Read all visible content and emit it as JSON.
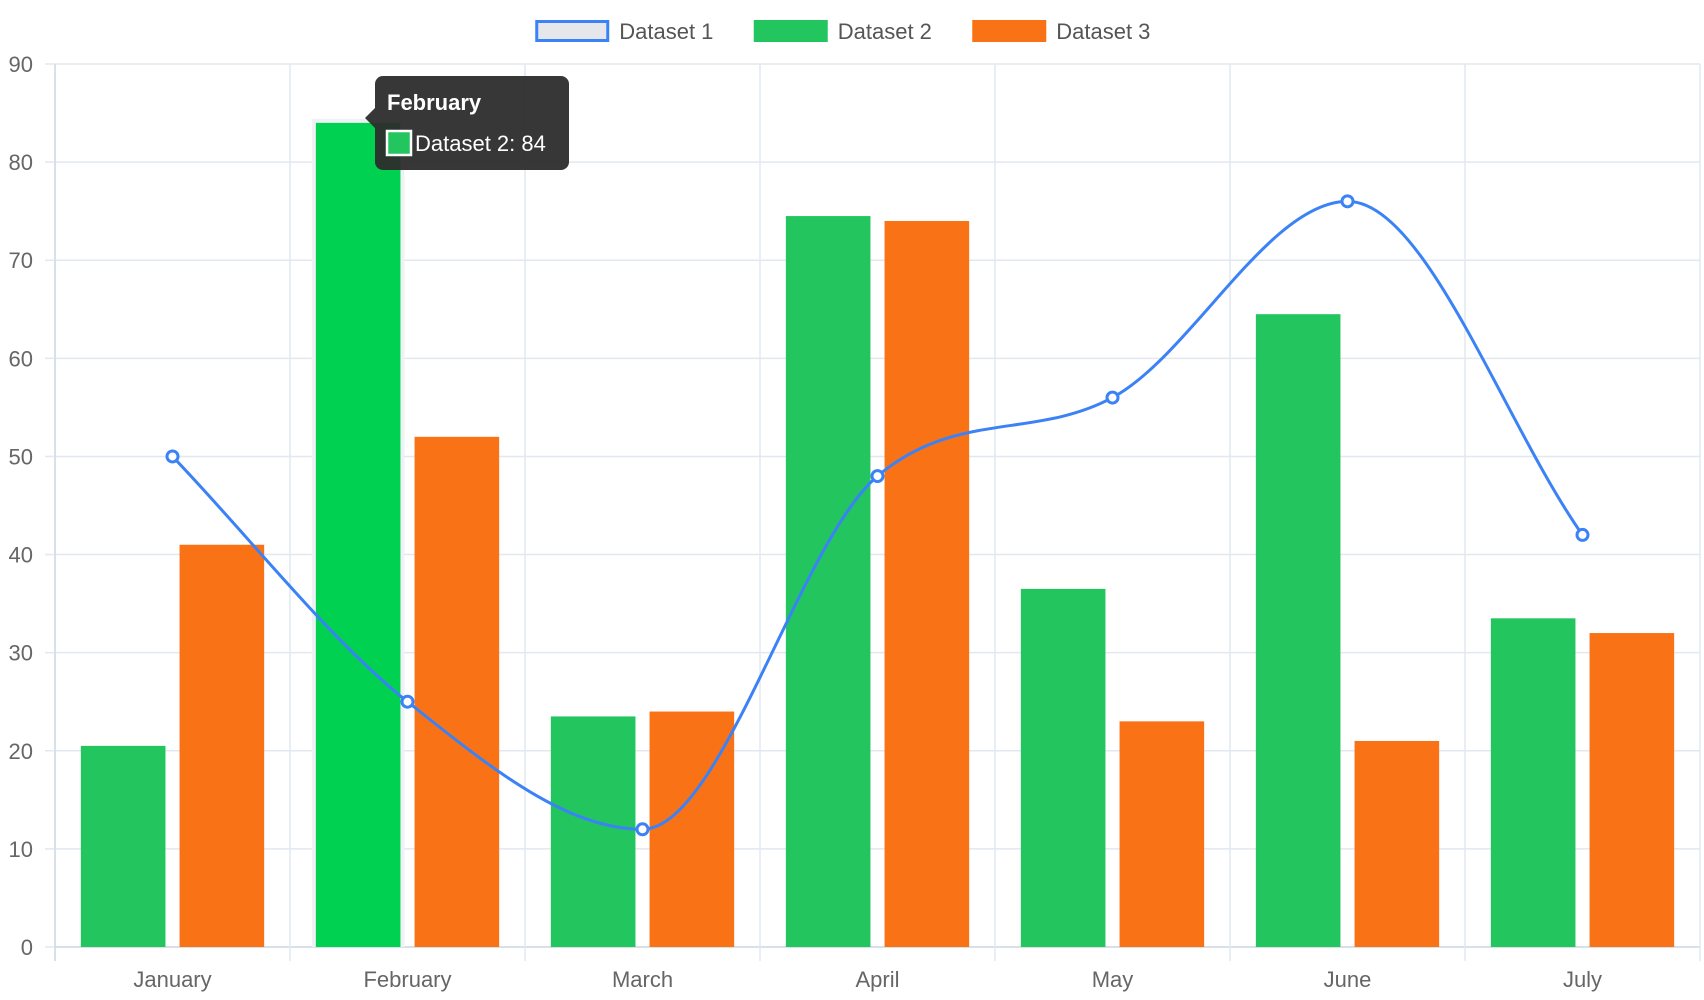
{
  "chart_data": {
    "type": "bar",
    "categories": [
      "January",
      "February",
      "March",
      "April",
      "May",
      "June",
      "July"
    ],
    "series": [
      {
        "name": "Dataset 1",
        "type": "line",
        "smooth": true,
        "values": [
          50,
          25,
          12,
          48,
          56,
          76,
          42
        ],
        "color": "#3b82f6",
        "legend_fill": "#e5e7eb"
      },
      {
        "name": "Dataset 2",
        "type": "bar",
        "values": [
          20.5,
          84,
          23.5,
          74.5,
          36.5,
          64.5,
          33.5
        ],
        "color": "#22c55e"
      },
      {
        "name": "Dataset 3",
        "type": "bar",
        "values": [
          41,
          52,
          24,
          74,
          23,
          21,
          32
        ],
        "color": "#f97316"
      }
    ],
    "ylim": [
      0,
      90
    ],
    "yticks": [
      0,
      10,
      20,
      30,
      40,
      50,
      60,
      70,
      80,
      90
    ],
    "grid": true,
    "legend_position": "top-center",
    "tooltip": {
      "title": "February",
      "label": "Dataset 2: 84",
      "category_index": 1,
      "series_index": 1,
      "highlight_color": "#00d150"
    }
  },
  "colors": {
    "grid": "#e2e8f0",
    "axis": "#cbd5e1",
    "tick_text": "#666666",
    "legend_text": "#555555",
    "tooltip_bg": "#2c2c2c"
  }
}
